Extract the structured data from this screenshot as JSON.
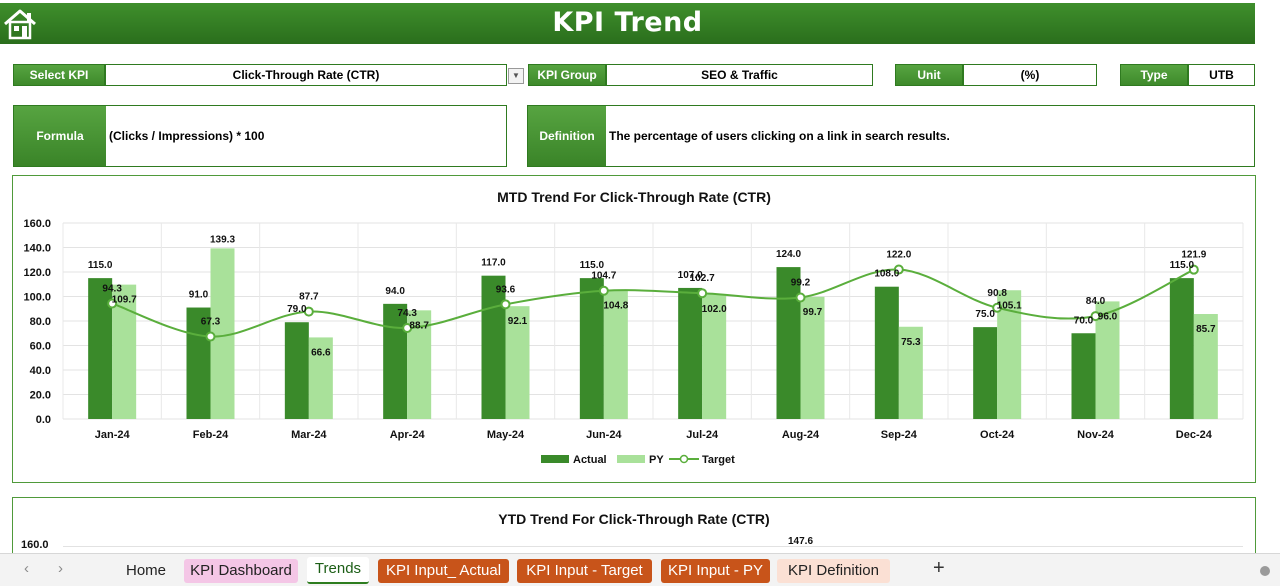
{
  "header": {
    "title": "KPI Trend",
    "home_icon": "home-icon"
  },
  "selectors": {
    "select_kpi_label": "Select KPI",
    "select_kpi_value": "Click-Through Rate (CTR)",
    "kpi_group_label": "KPI Group",
    "kpi_group_value": "SEO & Traffic",
    "unit_label": "Unit",
    "unit_value": "(%)",
    "type_label": "Type",
    "type_value": "UTB"
  },
  "formula": {
    "label": "Formula",
    "value": "(Clicks / Impressions) * 100"
  },
  "definition": {
    "label": "Definition",
    "value": "The percentage of users clicking on a link in search results."
  },
  "colors": {
    "header_green": "#2f7a20",
    "actual": "#3a8a2a",
    "py": "#a9e19a",
    "target": "#5aae3c"
  },
  "chart_data": [
    {
      "type": "bar",
      "title": "MTD Trend For Click-Through Rate (CTR)",
      "categories": [
        "Jan-24",
        "Feb-24",
        "Mar-24",
        "Apr-24",
        "May-24",
        "Jun-24",
        "Jul-24",
        "Aug-24",
        "Sep-24",
        "Oct-24",
        "Nov-24",
        "Dec-24"
      ],
      "series": [
        {
          "name": "Actual",
          "kind": "bar",
          "values": [
            115.0,
            91.0,
            79.0,
            94.0,
            117.0,
            115.0,
            107.0,
            124.0,
            108.0,
            75.0,
            70.0,
            115.0
          ]
        },
        {
          "name": "PY",
          "kind": "bar",
          "values": [
            109.7,
            139.3,
            66.6,
            88.7,
            92.1,
            104.8,
            102.0,
            99.7,
            75.3,
            105.1,
            96.0,
            85.7
          ]
        },
        {
          "name": "Target",
          "kind": "line",
          "values": [
            94.3,
            67.3,
            87.7,
            74.3,
            93.6,
            104.7,
            102.7,
            99.2,
            122.0,
            90.8,
            84.0,
            121.9
          ]
        }
      ],
      "actual_labels": [
        "115.0",
        "91.0",
        "79.0",
        "94.0",
        "117.0",
        "115.0",
        "107.0",
        "124.0",
        "108.0",
        "75.0",
        "70.0",
        "115.0"
      ],
      "py_labels": [
        "109.7",
        "139.3",
        "66.6",
        "88.7",
        "92.1",
        "104.8",
        "102.0",
        "99.7",
        "75.3",
        "105.1",
        "96.0",
        "85.7"
      ],
      "target_labels": [
        "94.3",
        "67.3",
        "87.7",
        "74.3",
        "93.6",
        "104.7",
        "102.7",
        "99.2",
        "122.0",
        "90.8",
        "84.0",
        "121.9"
      ],
      "ylim": [
        0,
        160
      ],
      "yticks": [
        "0.0",
        "20.0",
        "40.0",
        "60.0",
        "80.0",
        "100.0",
        "120.0",
        "140.0",
        "160.0"
      ],
      "legend": [
        "Actual",
        "PY",
        "Target"
      ],
      "legend_position": "bottom",
      "grid": true
    },
    {
      "type": "bar",
      "title": "YTD Trend For Click-Through Rate (CTR)",
      "visible_ytick": "160.0",
      "visible_value": "147.6"
    }
  ],
  "sheet_tabs": [
    {
      "label": "Home",
      "style": "plain"
    },
    {
      "label": "KPI Dashboard",
      "style": "pink"
    },
    {
      "label": "Trends",
      "style": "active"
    },
    {
      "label": "KPI Input_ Actual",
      "style": "orange"
    },
    {
      "label": "KPI Input - Target",
      "style": "orange"
    },
    {
      "label": "KPI Input - PY",
      "style": "orange"
    },
    {
      "label": "KPI Definition",
      "style": "peach"
    }
  ],
  "add_sheet_label": "+"
}
